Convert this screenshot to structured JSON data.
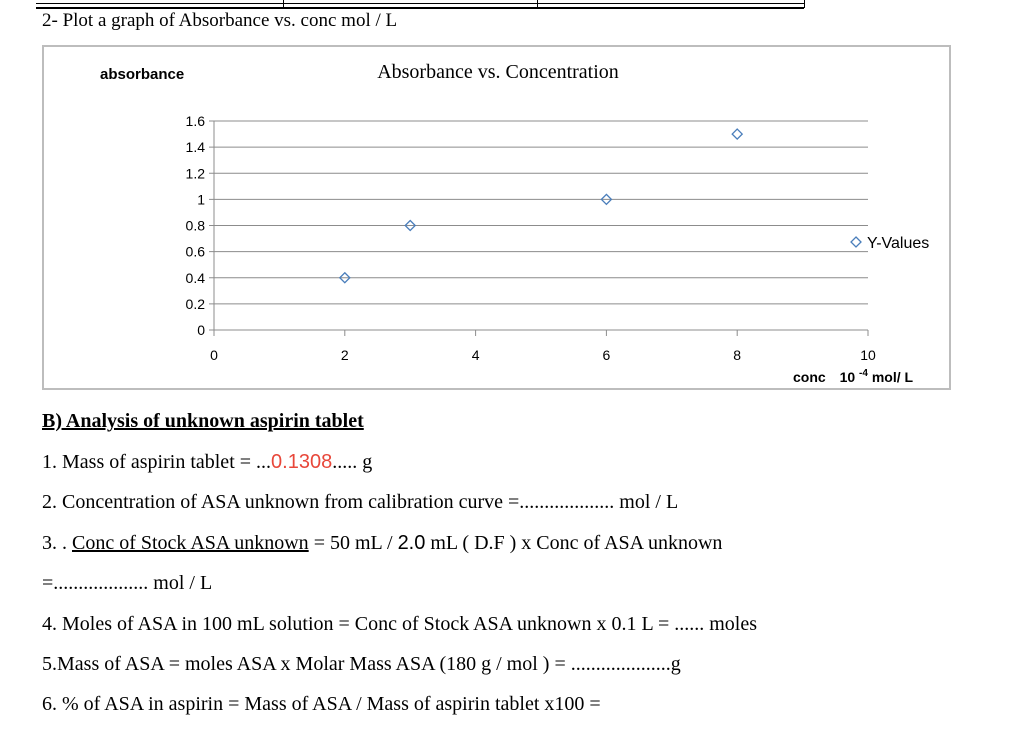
{
  "question2": "2- Plot a graph of Absorbance vs. conc mol / L",
  "chart_data": {
    "type": "scatter",
    "title": "Absorbance vs. Concentration",
    "ylabel": "absorbance",
    "xlabel_main": "conc",
    "xlabel_unit_base": "10",
    "xlabel_unit_exp": "-4",
    "xlabel_unit_tail": " mol/ L",
    "x": [
      2,
      3,
      6,
      8
    ],
    "y": [
      0.4,
      0.8,
      1.0,
      1.5
    ],
    "xlim": [
      0,
      10
    ],
    "ylim": [
      0,
      1.6
    ],
    "xticks": [
      "0",
      "2",
      "4",
      "6",
      "8",
      "10"
    ],
    "yticks": [
      "0",
      "0.2",
      "0.4",
      "0.6",
      "0.8",
      "1",
      "1.2",
      "1.4",
      "1.6"
    ],
    "legend": "Y-Values",
    "legend_position": "right",
    "marker_color": "#4a7ebb",
    "grid": true
  },
  "sectionB": {
    "heading": "B) Analysis of unknown  aspirin tablet",
    "l1_prefix": "1.  Mass of aspirin tablet = ...",
    "l1_value": "0.1308",
    "l1_suffix": "..... g",
    "l2": "2. Concentration of ASA unknown  from calibration curve =...................  mol / L",
    "l3_prefix": "3. . ",
    "l3_under": "Conc of  Stock ASA unknown",
    "l3_mid1": "  =  50 mL  / ",
    "l3_df": "2.0",
    "l3_mid2": " mL ( D.F )  x  Conc of ASA  unknown",
    "l3b": "=...................  mol / L",
    "l4": "4. Moles of ASA in 100 mL solution = Conc of  Stock ASA unknown  x 0.1 L = ......  moles",
    "l5": "5.Mass of ASA  =  moles ASA  x  Molar Mass ASA (180 g / mol ) =  ....................g",
    "l6": "6. % of  ASA in aspirin =    Mass of ASA   /  Mass of aspirin tablet x100  ="
  }
}
